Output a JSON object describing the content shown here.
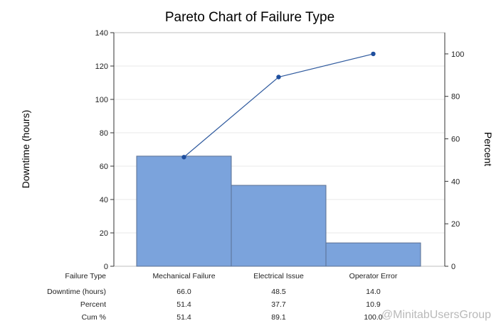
{
  "chart_data": {
    "type": "bar",
    "title": "Pareto Chart of Failure Type",
    "ylabel": "Downtime (hours)",
    "y2label": "Percent",
    "ylim": [
      0,
      140
    ],
    "yticks": [
      0,
      20,
      40,
      60,
      80,
      100,
      120,
      140
    ],
    "y2lim": [
      0,
      110
    ],
    "y2ticks": [
      0,
      20,
      40,
      60,
      80,
      100
    ],
    "categories": [
      "Mechanical Failure",
      "Electrical Issue",
      "Operator Error"
    ],
    "series": [
      {
        "type": "bar",
        "values": [
          66.0,
          48.5,
          14.0
        ],
        "color": "#7ba3dc"
      },
      {
        "type": "line",
        "values": [
          51.4,
          89.1,
          100.0
        ],
        "color": "#2f5a9e"
      }
    ],
    "table": {
      "row_labels": [
        "Failure Type",
        "Downtime (hours)",
        "Percent",
        "Cum %"
      ],
      "downtime": [
        "66.0",
        "48.5",
        "14.0"
      ],
      "percent": [
        "51.4",
        "37.7",
        "10.9"
      ],
      "cum": [
        "51.4",
        "89.1",
        "100.0"
      ]
    },
    "grid": true,
    "legend": "none"
  },
  "watermark": "@MinitabUsersGroup"
}
